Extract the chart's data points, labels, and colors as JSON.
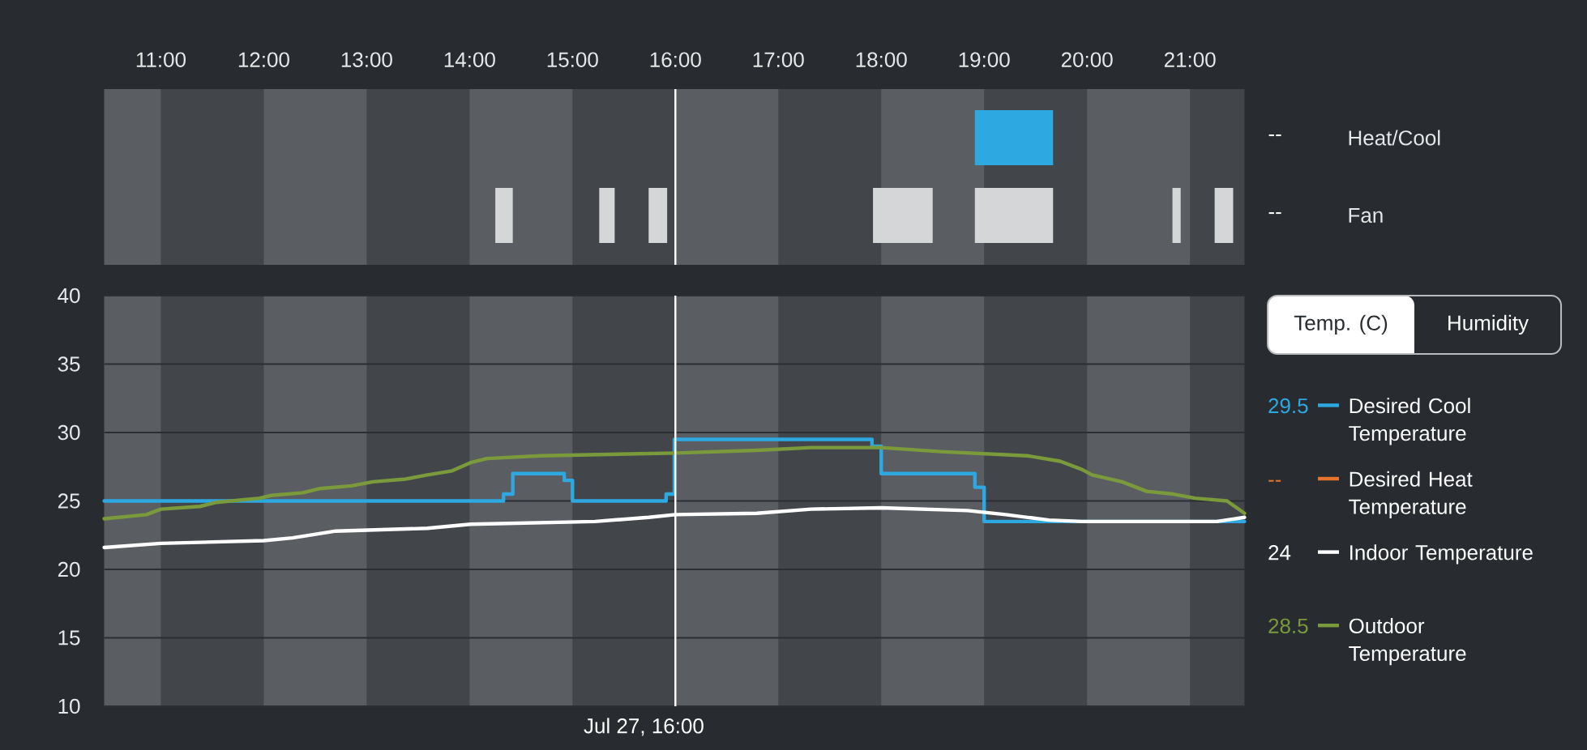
{
  "chart_data": [
    {
      "type": "bar",
      "orientation": "horizontal",
      "categories": [
        "Heat/Cool",
        "Fan"
      ],
      "series": [
        {
          "color": "#2ea8e0",
          "base": [
            18.91,
            null
          ],
          "values": [
            0.76,
            null
          ]
        },
        {
          "color": "#d5d6d8",
          "base": [
            null,
            14.25
          ],
          "values": [
            null,
            0.17
          ]
        },
        {
          "color": "#d5d6d8",
          "base": [
            null,
            15.26
          ],
          "values": [
            null,
            0.15
          ]
        },
        {
          "color": "#d5d6d8",
          "base": [
            null,
            15.74
          ],
          "values": [
            null,
            0.18
          ]
        },
        {
          "color": "#d5d6d8",
          "base": [
            null,
            17.92
          ],
          "values": [
            null,
            0.58
          ]
        },
        {
          "color": "#d5d6d8",
          "base": [
            null,
            18.91
          ],
          "values": [
            null,
            0.76
          ]
        },
        {
          "color": "#d5d6d8",
          "base": [
            null,
            20.83
          ],
          "values": [
            null,
            0.08
          ]
        },
        {
          "color": "#d5d6d8",
          "base": [
            null,
            21.24
          ],
          "values": [
            null,
            0.18
          ]
        }
      ],
      "xlim": [
        10.45,
        21.53
      ],
      "xticks": [
        {
          "value": 11,
          "label": "11:00"
        },
        {
          "value": 12,
          "label": "12:00"
        },
        {
          "value": 13,
          "label": "13:00"
        },
        {
          "value": 14,
          "label": "14:00"
        },
        {
          "value": 15,
          "label": "15:00"
        },
        {
          "value": 16,
          "label": "16:00"
        },
        {
          "value": 17,
          "label": "17:00"
        },
        {
          "value": 18,
          "label": "18:00"
        },
        {
          "value": 19,
          "label": "19:00"
        },
        {
          "value": 20,
          "label": "20:00"
        },
        {
          "value": 21,
          "label": "21:00"
        }
      ],
      "bands": [
        {
          "axis": "x",
          "from": 10.45,
          "to": 11,
          "color": "#5a5d62"
        },
        {
          "axis": "x",
          "from": 12,
          "to": 13,
          "color": "#5a5d62"
        },
        {
          "axis": "x",
          "from": 14,
          "to": 15,
          "color": "#5a5d62"
        },
        {
          "axis": "x",
          "from": 16,
          "to": 17,
          "color": "#5a5d62"
        },
        {
          "axis": "x",
          "from": 18,
          "to": 19,
          "color": "#5a5d62"
        },
        {
          "axis": "x",
          "from": 20,
          "to": 21,
          "color": "#5a5d62"
        }
      ],
      "ref_lines": [
        {
          "axis": "x",
          "value": 16,
          "color": "#ffffff"
        }
      ],
      "annotations": [
        "--",
        "--"
      ]
    },
    {
      "type": "line",
      "series": [
        {
          "name": "Desired Cool Temperature",
          "type": "step",
          "color": "#2ea8e0",
          "x": [
            10.45,
            14.33,
            14.42,
            14.92,
            15.0,
            15.91,
            15.99,
            17.91,
            18.0,
            18.91,
            19.0,
            21.53
          ],
          "values": [
            25,
            25.5,
            27,
            26.5,
            25,
            25.5,
            29.5,
            29,
            27,
            26,
            23.5,
            23.5
          ]
        },
        {
          "name": "Desired Heat Temperature",
          "color": "#e8732c"
        },
        {
          "name": "Indoor Temperature",
          "color": "#ffffff",
          "x": [
            10.45,
            11.0,
            12.0,
            12.28,
            12.7,
            13.59,
            14.01,
            15.22,
            15.74,
            16.0,
            16.79,
            17.32,
            18.0,
            18.84,
            19.21,
            19.63,
            19.95,
            21.26,
            21.53
          ],
          "values": [
            21.6,
            21.9,
            22.1,
            22.3,
            22.8,
            23.0,
            23.3,
            23.5,
            23.8,
            24.0,
            24.1,
            24.4,
            24.5,
            24.3,
            24.0,
            23.6,
            23.5,
            23.5,
            23.8
          ]
        },
        {
          "name": "Outdoor Temperature",
          "color": "#7b9a3c",
          "x": [
            10.45,
            10.86,
            11.0,
            11.38,
            11.54,
            11.96,
            12.07,
            12.38,
            12.54,
            12.85,
            13.06,
            13.38,
            13.59,
            13.83,
            14.01,
            14.17,
            14.69,
            16.0,
            16.79,
            17.32,
            18.0,
            18.58,
            19.42,
            19.74,
            19.95,
            20.05,
            20.34,
            20.58,
            20.84,
            21.05,
            21.36,
            21.53
          ],
          "values": [
            23.7,
            24.0,
            24.4,
            24.6,
            24.9,
            25.2,
            25.4,
            25.6,
            25.9,
            26.1,
            26.4,
            26.6,
            26.9,
            27.2,
            27.8,
            28.1,
            28.3,
            28.5,
            28.7,
            28.9,
            28.9,
            28.6,
            28.3,
            27.9,
            27.3,
            26.9,
            26.4,
            25.7,
            25.5,
            25.2,
            25.0,
            24.1
          ]
        }
      ],
      "xlim": [
        10.45,
        21.53
      ],
      "ylim": [
        10,
        40
      ],
      "yticks": [
        10,
        15,
        20,
        25,
        30,
        35,
        40
      ],
      "grid": "y",
      "tick_labels": "y",
      "legend": "right",
      "bands": [
        {
          "axis": "x",
          "from": 10.45,
          "to": 11,
          "color": "#5a5d62"
        },
        {
          "axis": "x",
          "from": 12,
          "to": 13,
          "color": "#5a5d62"
        },
        {
          "axis": "x",
          "from": 14,
          "to": 15,
          "color": "#5a5d62"
        },
        {
          "axis": "x",
          "from": 16,
          "to": 17,
          "color": "#5a5d62"
        },
        {
          "axis": "x",
          "from": 18,
          "to": 19,
          "color": "#5a5d62"
        },
        {
          "axis": "x",
          "from": 20,
          "to": 21,
          "color": "#5a5d62"
        }
      ],
      "ref_lines": [
        {
          "axis": "x",
          "value": 16,
          "label": "Jul 27, 16:00",
          "color": "#ffffff"
        }
      ],
      "annotations": [
        "29.5",
        "--",
        "24",
        "28.5",
        "Temp. (C)",
        "Humidity"
      ]
    }
  ]
}
